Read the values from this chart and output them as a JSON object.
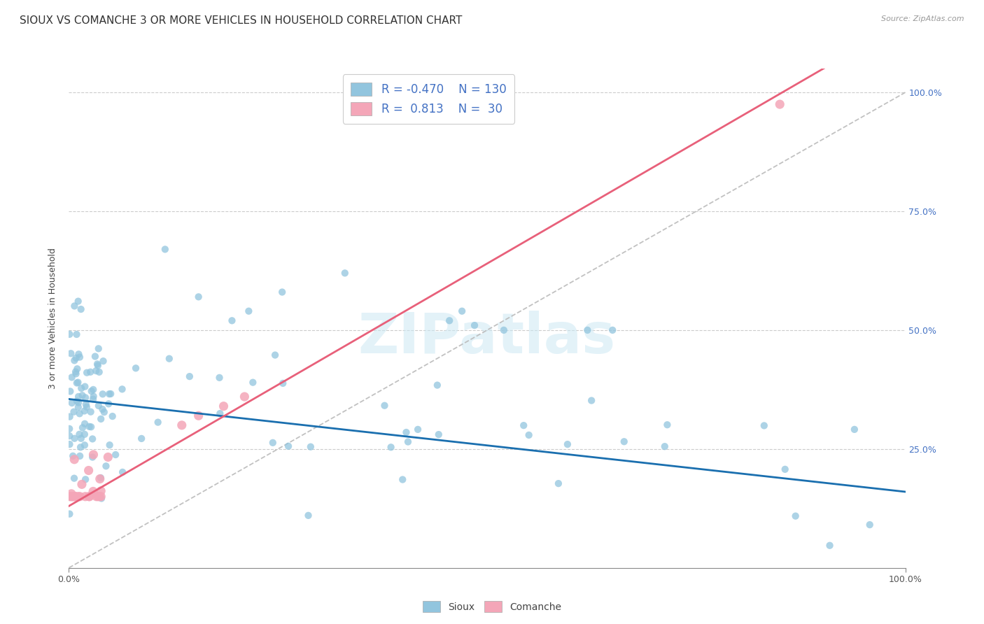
{
  "title": "SIOUX VS COMANCHE 3 OR MORE VEHICLES IN HOUSEHOLD CORRELATION CHART",
  "source": "Source: ZipAtlas.com",
  "ylabel": "3 or more Vehicles in Household",
  "watermark": "ZIPatlas",
  "legend_sioux_r": "-0.470",
  "legend_sioux_n": "130",
  "legend_comanche_r": "0.813",
  "legend_comanche_n": "30",
  "sioux_color": "#92c5de",
  "comanche_color": "#f4a6b8",
  "sioux_line_color": "#1a6faf",
  "comanche_line_color": "#e8607a",
  "diagonal_color": "#bbbbbb",
  "background_color": "#ffffff",
  "title_fontsize": 11,
  "axis_label_fontsize": 9,
  "tick_label_color": "#4472c4",
  "tick_label_fontsize": 9,
  "legend_text_color": "#4472c4",
  "legend_fontsize": 12,
  "sioux_trend_intercept": 0.355,
  "sioux_trend_slope": -0.195,
  "comanche_trend_intercept": 0.13,
  "comanche_trend_slope": 1.02
}
